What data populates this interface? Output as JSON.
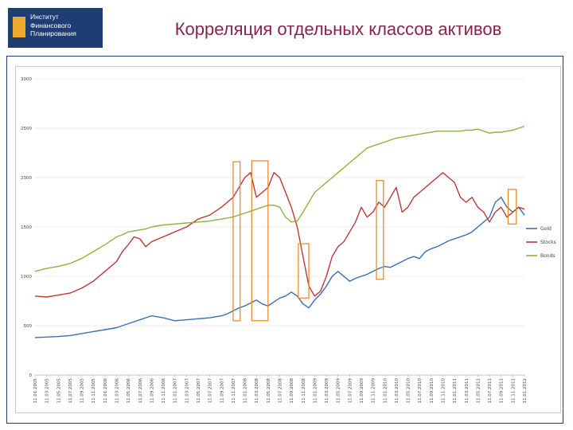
{
  "header": {
    "logo_lines": [
      "Институт",
      "Финансового",
      "Планирования"
    ],
    "title": "Корреляция отдельных классов активов"
  },
  "colors": {
    "gold": "#3a6fb0",
    "stocks": "#bb3a36",
    "bonds": "#8db33f",
    "highlight": "#ee8a2c",
    "title": "#8c2346",
    "logo_bg": "#1d3d73"
  },
  "chart_data": {
    "type": "line",
    "title": "",
    "xlabel": "",
    "ylabel": "",
    "ylim": [
      0,
      3000
    ],
    "yticks": [
      0,
      500,
      1000,
      1500,
      2000,
      2500,
      3000
    ],
    "ytick_labels": [
      "0",
      "500",
      "1000",
      "1500",
      "2000",
      "2500",
      "3000"
    ],
    "grid": true,
    "legend_position": "right",
    "x_tick_labels": [
      "11.01.2005",
      "11.03.2005",
      "11.05.2005",
      "11.07.2005",
      "11.09.2005",
      "11.11.2005",
      "11.01.2006",
      "11.03.2006",
      "11.05.2006",
      "11.07.2006",
      "11.09.2006",
      "11.11.2006",
      "11.01.2007",
      "11.03.2007",
      "11.05.2007",
      "11.07.2007",
      "11.09.2007",
      "11.11.2007",
      "11.01.2008",
      "11.03.2008",
      "11.05.2008",
      "11.07.2008",
      "11.09.2008",
      "11.11.2008",
      "11.01.2009",
      "11.03.2009",
      "11.05.2009",
      "11.07.2009",
      "11.09.2009",
      "11.11.2009",
      "11.01.2010",
      "11.03.2010",
      "11.05.2010",
      "11.07.2010",
      "11.09.2010",
      "11.11.2010",
      "11.01.2011",
      "11.03.2011",
      "11.05.2011",
      "11.07.2011",
      "11.09.2011",
      "11.11.2011",
      "11.01.2012"
    ],
    "x": [
      0,
      2,
      4,
      6,
      8,
      10,
      12,
      14,
      15,
      16,
      17,
      18,
      19,
      20,
      22,
      24,
      26,
      28,
      30,
      32,
      33,
      34,
      35,
      36,
      37,
      38,
      39,
      40,
      41,
      42,
      43,
      44,
      45,
      46,
      47,
      48,
      49,
      50,
      51,
      52,
      53,
      54,
      55,
      56,
      57,
      58,
      59,
      60,
      61,
      62,
      63,
      64,
      65,
      66,
      67,
      68,
      69,
      70,
      71,
      72,
      73,
      74,
      75,
      76,
      77,
      78,
      79,
      80,
      81,
      82,
      83,
      84
    ],
    "series": [
      {
        "name": "Gold",
        "values": [
          380,
          385,
          390,
          400,
          420,
          440,
          460,
          480,
          500,
          520,
          540,
          560,
          580,
          600,
          580,
          550,
          560,
          570,
          580,
          600,
          620,
          650,
          680,
          700,
          730,
          760,
          720,
          700,
          740,
          780,
          800,
          840,
          800,
          720,
          680,
          760,
          820,
          900,
          1000,
          1050,
          1000,
          950,
          980,
          1000,
          1020,
          1050,
          1080,
          1100,
          1090,
          1120,
          1150,
          1180,
          1200,
          1180,
          1250,
          1280,
          1300,
          1330,
          1360,
          1380,
          1400,
          1420,
          1450,
          1500,
          1550,
          1600,
          1750,
          1800,
          1700,
          1650,
          1700,
          1620
        ]
      },
      {
        "name": "Stocks",
        "values": [
          800,
          790,
          810,
          830,
          880,
          950,
          1050,
          1150,
          1250,
          1320,
          1400,
          1380,
          1300,
          1350,
          1400,
          1450,
          1500,
          1580,
          1620,
          1700,
          1750,
          1800,
          1900,
          2000,
          2050,
          1800,
          1850,
          1900,
          2050,
          2000,
          1850,
          1700,
          1500,
          1200,
          900,
          800,
          850,
          1000,
          1200,
          1300,
          1350,
          1450,
          1550,
          1700,
          1600,
          1650,
          1750,
          1700,
          1800,
          1900,
          1650,
          1700,
          1800,
          1850,
          1900,
          1950,
          2000,
          2050,
          2000,
          1950,
          1800,
          1750,
          1800,
          1700,
          1650,
          1550,
          1650,
          1700,
          1600,
          1650,
          1700,
          1680
        ]
      },
      {
        "name": "Bonds",
        "values": [
          1050,
          1080,
          1100,
          1130,
          1180,
          1250,
          1320,
          1400,
          1420,
          1450,
          1460,
          1470,
          1480,
          1500,
          1520,
          1530,
          1540,
          1550,
          1560,
          1580,
          1590,
          1600,
          1620,
          1640,
          1660,
          1680,
          1700,
          1720,
          1720,
          1700,
          1600,
          1550,
          1560,
          1650,
          1750,
          1850,
          1900,
          1950,
          2000,
          2050,
          2100,
          2150,
          2200,
          2250,
          2300,
          2320,
          2340,
          2360,
          2380,
          2400,
          2410,
          2420,
          2430,
          2440,
          2450,
          2460,
          2470,
          2470,
          2470,
          2470,
          2470,
          2480,
          2480,
          2490,
          2470,
          2450,
          2460,
          2460,
          2470,
          2480,
          2500,
          2520
        ]
      }
    ],
    "highlights": [
      {
        "x": [
          34,
          35.2
        ],
        "y": [
          550,
          2160
        ]
      },
      {
        "x": [
          37.2,
          40
        ],
        "y": [
          550,
          2170
        ]
      },
      {
        "x": [
          45.2,
          47
        ],
        "y": [
          780,
          1330
        ]
      },
      {
        "x": [
          58.6,
          59.8
        ],
        "y": [
          970,
          1970
        ]
      },
      {
        "x": [
          81.2,
          82.6
        ],
        "y": [
          1530,
          1880
        ]
      }
    ]
  }
}
